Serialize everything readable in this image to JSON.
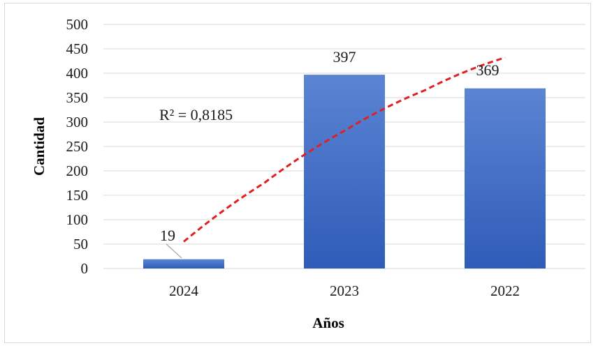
{
  "chart_data": {
    "type": "bar",
    "categories": [
      "2024",
      "2023",
      "2022"
    ],
    "values": [
      19,
      397,
      369
    ],
    "data_labels": [
      "19",
      "397",
      "369"
    ],
    "xlabel": "Años",
    "ylabel": "Cantidad",
    "ylim": [
      0,
      500
    ],
    "yticks": [
      0,
      50,
      100,
      150,
      200,
      250,
      300,
      350,
      400,
      450,
      500
    ],
    "grid": true,
    "legend": "none",
    "trendline": {
      "type": "logarithmic",
      "style": "dashed",
      "r_squared_label": "R² = 0,8185",
      "points": [
        [
          1,
          55
        ],
        [
          1.5,
          175
        ],
        [
          2,
          282
        ],
        [
          2.5,
          365
        ],
        [
          3,
          432
        ]
      ]
    },
    "colors": {
      "bar": "#4472c4",
      "trendline": "#e02020",
      "grid": "#d9d9d9"
    }
  }
}
